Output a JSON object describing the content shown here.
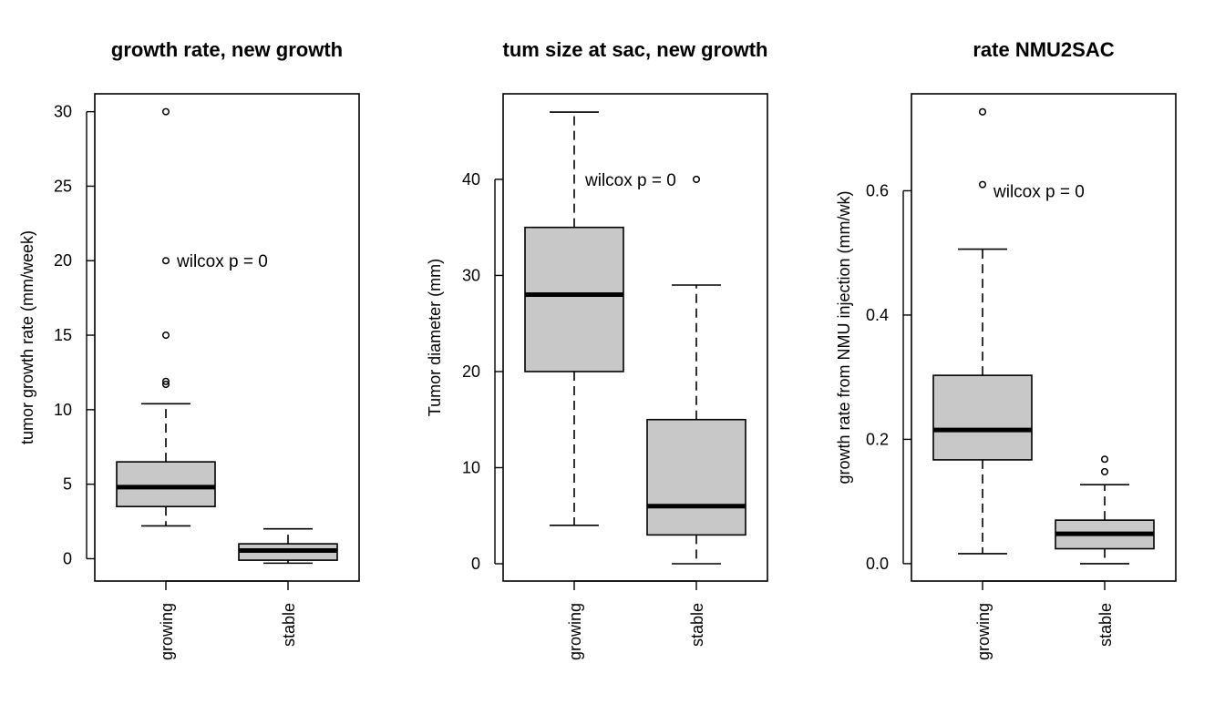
{
  "chart_data": [
    {
      "type": "box",
      "title": "growth rate, new growth",
      "ylabel": "tumor growth rate (mm/week)",
      "xlabel": "",
      "categories": [
        "growing",
        "stable"
      ],
      "ylim": [
        -1.5,
        31.2
      ],
      "yticks": [
        0,
        5,
        10,
        15,
        20,
        25,
        30
      ],
      "yticklabels": [
        "0",
        "5",
        "10",
        "15",
        "20",
        "25",
        "30"
      ],
      "box_fill": "#c8c8c8",
      "boxes": [
        {
          "lower_whisker": 2.2,
          "q1": 3.5,
          "median": 4.8,
          "q3": 6.5,
          "upper_whisker": 10.4,
          "outliers": [
            11.7,
            11.9,
            15,
            20,
            30
          ]
        },
        {
          "lower_whisker": -0.3,
          "q1": -0.1,
          "median": 0.55,
          "q3": 1.0,
          "upper_whisker": 2.0,
          "outliers": []
        }
      ],
      "annotation": {
        "text": "wilcox p = 0",
        "x": 1,
        "y": 20
      }
    },
    {
      "type": "box",
      "title": "tum size at sac, new growth",
      "ylabel": "Tumor diameter (mm)",
      "xlabel": "",
      "categories": [
        "growing",
        "stable"
      ],
      "ylim": [
        -1.8,
        48.9
      ],
      "yticks": [
        0,
        10,
        20,
        30,
        40
      ],
      "yticklabels": [
        "0",
        "10",
        "20",
        "30",
        "40"
      ],
      "box_fill": "#c8c8c8",
      "boxes": [
        {
          "lower_whisker": 4,
          "q1": 20,
          "median": 28,
          "q3": 35,
          "upper_whisker": 47,
          "outliers": []
        },
        {
          "lower_whisker": 0,
          "q1": 3,
          "median": 6,
          "q3": 15,
          "upper_whisker": 29,
          "outliers": [
            40
          ]
        }
      ],
      "annotation": {
        "text": "wilcox p = 0",
        "x": 1,
        "y": 40
      }
    },
    {
      "type": "box",
      "title": "rate NMU2SAC",
      "ylabel": "growth rate from NMU injection (mm/wk)",
      "xlabel": "",
      "categories": [
        "growing",
        "stable"
      ],
      "ylim": [
        -0.028,
        0.756
      ],
      "yticks": [
        0.0,
        0.2,
        0.4,
        0.6
      ],
      "yticklabels": [
        "0.0",
        "0.2",
        "0.4",
        "0.6"
      ],
      "box_fill": "#c8c8c8",
      "boxes": [
        {
          "lower_whisker": 0.016,
          "q1": 0.167,
          "median": 0.215,
          "q3": 0.303,
          "upper_whisker": 0.506,
          "outliers": [
            0.61,
            0.727
          ]
        },
        {
          "lower_whisker": 0.0,
          "q1": 0.024,
          "median": 0.048,
          "q3": 0.07,
          "upper_whisker": 0.127,
          "outliers": [
            0.148,
            0.168
          ]
        }
      ],
      "annotation": {
        "text": "wilcox p = 0",
        "x": 1,
        "y": 0.6
      }
    }
  ]
}
